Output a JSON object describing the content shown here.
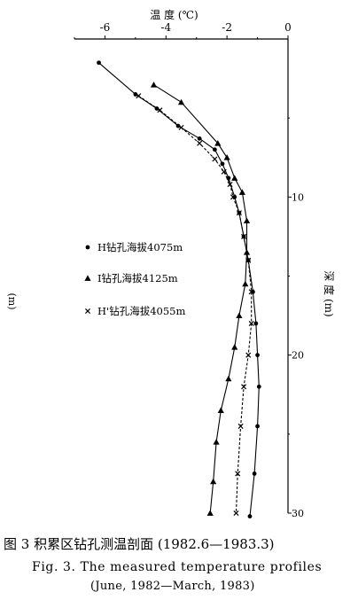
{
  "chart_data": {
    "type": "line",
    "title": "",
    "xlabel": "温 度 (℃)",
    "ylabel": "深 度 (m)",
    "xlim": [
      -7,
      0
    ],
    "ylim": [
      0,
      30
    ],
    "x_axis_position": "top",
    "y_axis_position": "right",
    "y_inverted": true,
    "grid": false,
    "legend_placement": "center-left",
    "x_ticks": [
      -6,
      -4,
      -2,
      0
    ],
    "x_tick_labels": [
      "-6",
      "-4",
      "-2",
      "0"
    ],
    "y_ticks": [
      10,
      20,
      30
    ],
    "y_tick_labels": [
      "10",
      "20",
      "30"
    ],
    "left_axis_label": "(m)",
    "series": [
      {
        "name": "H钻孔海拔4075m",
        "marker": "circle",
        "points": [
          [
            -6.2,
            1.5
          ],
          [
            -5.0,
            3.5
          ],
          [
            -4.3,
            4.4
          ],
          [
            -3.6,
            5.5
          ],
          [
            -2.9,
            6.3
          ],
          [
            -2.4,
            7.0
          ],
          [
            -2.15,
            7.9
          ],
          [
            -1.95,
            8.8
          ],
          [
            -1.75,
            10.0
          ],
          [
            -1.6,
            11.0
          ],
          [
            -1.45,
            12.5
          ],
          [
            -1.3,
            14.0
          ],
          [
            -1.15,
            16.0
          ],
          [
            -1.05,
            18.0
          ],
          [
            -1.0,
            20.0
          ],
          [
            -0.95,
            22.0
          ],
          [
            -1.0,
            24.5
          ],
          [
            -1.1,
            27.5
          ],
          [
            -1.25,
            30.2
          ]
        ]
      },
      {
        "name": "I钻孔海拔4125m",
        "marker": "triangle",
        "points": [
          [
            -4.4,
            2.9
          ],
          [
            -3.5,
            4.0
          ],
          [
            -2.3,
            6.6
          ],
          [
            -2.0,
            7.5
          ],
          [
            -1.75,
            8.8
          ],
          [
            -1.5,
            9.7
          ],
          [
            -1.35,
            11.5
          ],
          [
            -1.35,
            13.5
          ],
          [
            -1.4,
            15.5
          ],
          [
            -1.6,
            17.5
          ],
          [
            -1.75,
            19.5
          ],
          [
            -1.95,
            21.5
          ],
          [
            -2.2,
            23.5
          ],
          [
            -2.35,
            25.5
          ],
          [
            -2.45,
            28.0
          ],
          [
            -2.55,
            30.0
          ]
        ]
      },
      {
        "name": "H'钻孔海拔4055m",
        "marker": "x",
        "points": [
          [
            -4.9,
            3.6
          ],
          [
            -4.2,
            4.5
          ],
          [
            -3.5,
            5.6
          ],
          [
            -2.9,
            6.6
          ],
          [
            -2.4,
            7.6
          ],
          [
            -2.1,
            8.4
          ],
          [
            -1.9,
            9.2
          ],
          [
            -1.8,
            10.0
          ],
          [
            -1.6,
            11.0
          ],
          [
            -1.45,
            12.5
          ],
          [
            -1.3,
            14.0
          ],
          [
            -1.2,
            16.0
          ],
          [
            -1.2,
            18.0
          ],
          [
            -1.3,
            20.0
          ],
          [
            -1.45,
            22.0
          ],
          [
            -1.55,
            24.5
          ],
          [
            -1.65,
            27.5
          ],
          [
            -1.7,
            30.0
          ]
        ]
      }
    ]
  },
  "caption": {
    "chinese": "图 3  积累区钻孔测温剖面 (1982.6—1983.3)",
    "english_line1": "Fig. 3.  The measured temperature profiles",
    "english_line2": "(June, 1982—March, 1983)"
  }
}
